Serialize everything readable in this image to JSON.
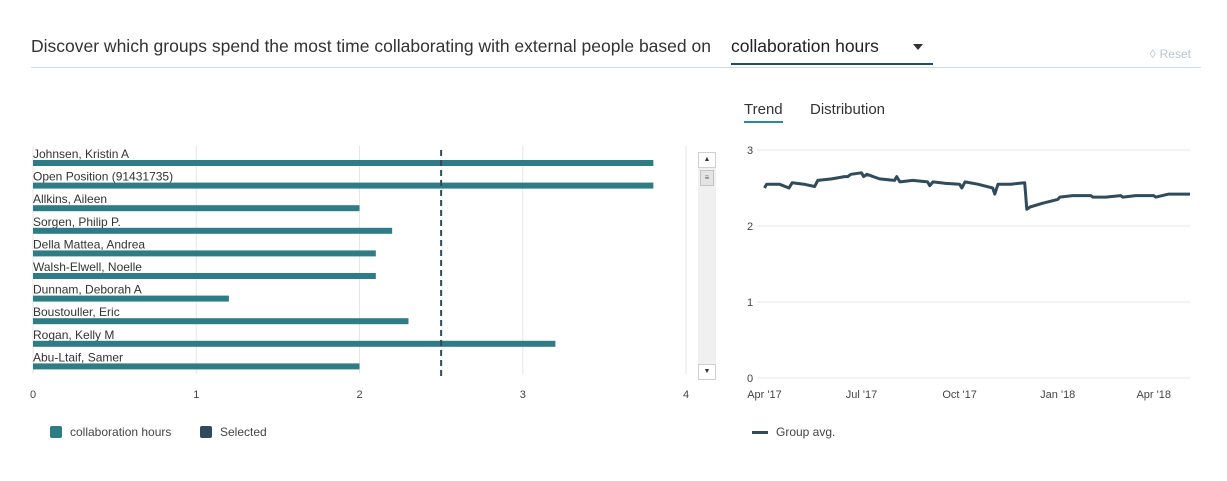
{
  "header": {
    "title": "Discover which groups spend the most time collaborating with external people based on",
    "metric_value": "collaboration hours",
    "reset_label": "Reset"
  },
  "tabs": [
    {
      "label": "Trend",
      "active": true
    },
    {
      "label": "Distribution",
      "active": false
    }
  ],
  "colors": {
    "bar": "#2e7d86",
    "selected": "#2f4b5c",
    "line": "#2f4b5c",
    "grid": "#e6e6e6"
  },
  "icons": {
    "reset": "eraser-icon",
    "scroll_up": "triangle-up-icon",
    "scroll_down": "triangle-down-icon",
    "thumb": "grip-lines-icon"
  },
  "legend_left": [
    {
      "label": "collaboration hours",
      "color": "#2e7d86"
    },
    {
      "label": "Selected",
      "color": "#2f4b5c"
    }
  ],
  "legend_right": {
    "label": "Group avg.",
    "color": "#2f4b5c"
  },
  "chart_data": [
    {
      "type": "bar",
      "orientation": "horizontal",
      "categories": [
        "Johnsen, Kristin A",
        "Open Position (91431735)",
        "Allkins, Aileen",
        "Sorgen, Philip P.",
        "Della Mattea, Andrea",
        "Walsh-Elwell, Noelle",
        "Dunnam, Deborah A",
        "Boustouller, Eric",
        "Rogan, Kelly M",
        "Abu-Ltaif, Samer"
      ],
      "series": [
        {
          "name": "collaboration hours",
          "values": [
            3.8,
            3.8,
            2.0,
            2.2,
            2.1,
            2.1,
            1.2,
            2.3,
            3.2,
            2.0
          ]
        }
      ],
      "reference_line": 2.5,
      "xlim": [
        0,
        4
      ],
      "xticks": [
        "0",
        "1",
        "2",
        "3",
        "4"
      ],
      "grid": true
    },
    {
      "type": "line",
      "x": [
        "2017-04-01",
        "2017-04-03",
        "2017-04-15",
        "2017-04-24",
        "2017-04-27",
        "2017-05-08",
        "2017-05-18",
        "2017-05-21",
        "2017-06-03",
        "2017-06-15",
        "2017-06-18",
        "2017-06-21",
        "2017-07-01",
        "2017-07-03",
        "2017-07-06",
        "2017-07-18",
        "2017-08-01",
        "2017-08-03",
        "2017-08-06",
        "2017-08-18",
        "2017-09-01",
        "2017-09-03",
        "2017-09-06",
        "2017-09-18",
        "2017-10-01",
        "2017-10-03",
        "2017-10-06",
        "2017-10-18",
        "2017-11-01",
        "2017-11-03",
        "2017-11-06",
        "2017-11-18",
        "2017-12-01",
        "2017-12-03",
        "2017-12-06",
        "2017-12-18",
        "2018-01-01",
        "2018-01-03",
        "2018-01-15",
        "2018-02-01",
        "2018-02-03",
        "2018-02-15",
        "2018-03-01",
        "2018-03-03",
        "2018-03-15",
        "2018-04-01",
        "2018-04-03",
        "2018-04-15",
        "2018-05-01",
        "2018-05-05"
      ],
      "series": [
        {
          "name": "Group avg.",
          "values": [
            2.5,
            2.55,
            2.55,
            2.5,
            2.57,
            2.55,
            2.52,
            2.6,
            2.62,
            2.65,
            2.65,
            2.68,
            2.7,
            2.65,
            2.68,
            2.62,
            2.6,
            2.65,
            2.58,
            2.6,
            2.58,
            2.53,
            2.58,
            2.56,
            2.55,
            2.5,
            2.58,
            2.55,
            2.5,
            2.42,
            2.55,
            2.55,
            2.57,
            2.22,
            2.25,
            2.3,
            2.35,
            2.38,
            2.4,
            2.4,
            2.38,
            2.38,
            2.4,
            2.38,
            2.4,
            2.4,
            2.38,
            2.42,
            2.42,
            2.42
          ]
        }
      ],
      "xticks": [
        "Apr '17",
        "Jul '17",
        "Oct '17",
        "Jan '18",
        "Apr '18"
      ],
      "xtick_dates": [
        "2017-04-01",
        "2017-07-01",
        "2017-10-01",
        "2018-01-01",
        "2018-04-01"
      ],
      "yticks": [
        "0",
        "1",
        "2",
        "3"
      ],
      "ylim": [
        0,
        3
      ],
      "grid": true
    }
  ]
}
